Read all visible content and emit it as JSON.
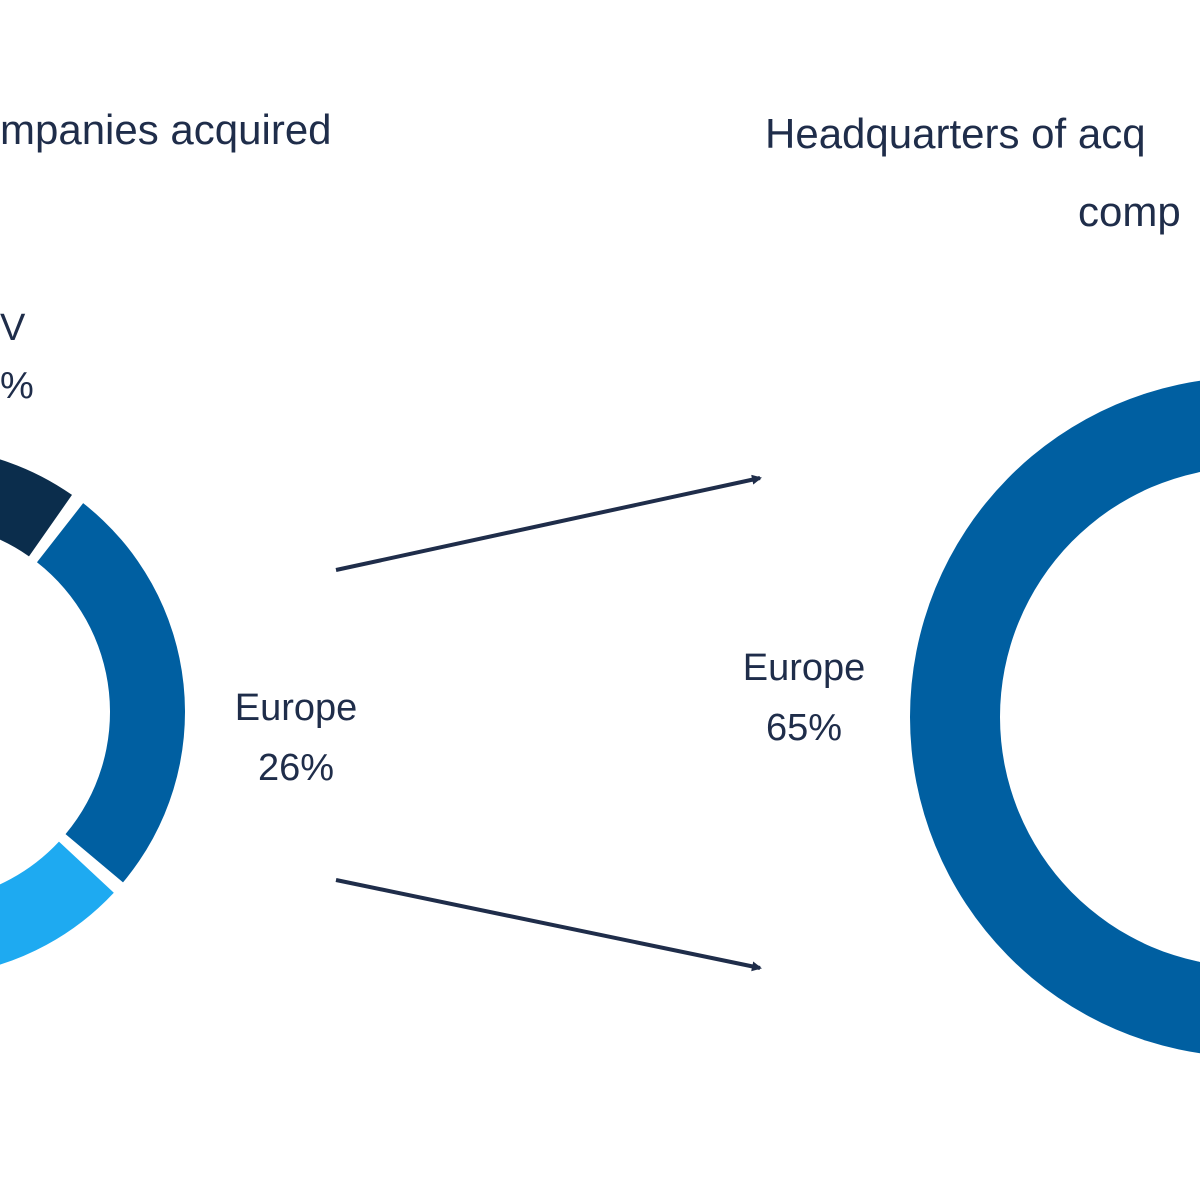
{
  "left_chart": {
    "title": "mpanies acquired",
    "clipped_label_line1": "V",
    "clipped_label_line2": "%",
    "europe_label": "Europe",
    "europe_value": "26%"
  },
  "right_chart": {
    "title_line1": "Headquarters of acq",
    "title_line2": "comp",
    "europe_label": "Europe",
    "europe_value": "65%"
  },
  "colors": {
    "dark_navy": "#0b2d4c",
    "mid_blue": "#005fa1",
    "light_blue": "#1eaaf1",
    "arrow": "#1f2d4a",
    "text": "#1f2d4a"
  },
  "chart_data": [
    {
      "type": "pie",
      "variant": "donut",
      "title": "mpanies acquired",
      "slices": [
        {
          "name": "Europe",
          "value": 26,
          "color": "#005fa1"
        },
        {
          "name": "V",
          "value": null,
          "color": "#0b2d4c"
        },
        {
          "name": "",
          "value": null,
          "color": "#1eaaf1"
        }
      ],
      "legend": "none"
    },
    {
      "type": "pie",
      "variant": "donut",
      "title": "Headquarters of acq comp",
      "slices": [
        {
          "name": "Europe",
          "value": 65,
          "color": "#005fa1"
        }
      ],
      "legend": "none"
    }
  ]
}
